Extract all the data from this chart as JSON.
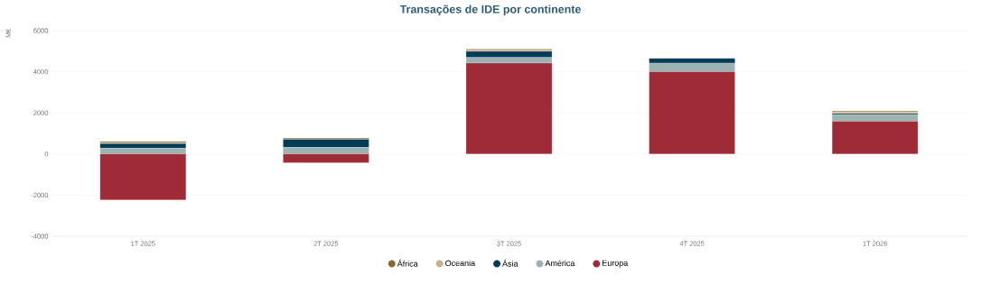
{
  "chart_data": {
    "type": "bar",
    "title": "Transações de IDE por continente",
    "ylabel": "M€",
    "stacked": true,
    "categories": [
      "1T 2025",
      "2T 2025",
      "3T 2025",
      "4T 2025",
      "1T 2026"
    ],
    "series": [
      {
        "name": "Europa",
        "color": "#9e2b35",
        "values": [
          -2230,
          -420,
          4420,
          4000,
          1590
        ]
      },
      {
        "name": "América",
        "color": "#9bb3b2",
        "values": [
          280,
          320,
          280,
          420,
          320
        ]
      },
      {
        "name": "Ásia",
        "color": "#003c57",
        "values": [
          230,
          400,
          290,
          230,
          60
        ]
      },
      {
        "name": "Oceania",
        "color": "#c9b18f",
        "values": [
          30,
          20,
          60,
          0,
          60
        ]
      },
      {
        "name": "África",
        "color": "#8b6a2b",
        "values": [
          60,
          40,
          50,
          0,
          60
        ]
      }
    ],
    "ylim": [
      -4000,
      6000
    ],
    "yticks": [
      -4000,
      -2000,
      0,
      2000,
      4000,
      6000
    ],
    "grid": "y",
    "legend": "bottom"
  }
}
